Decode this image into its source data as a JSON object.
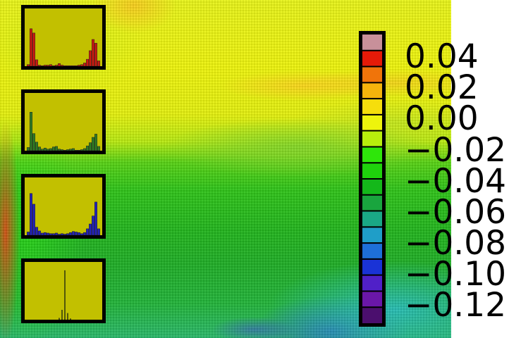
{
  "chart_data": {
    "type": "heatmap",
    "colorbar": {
      "ticks": [
        "0.04",
        "0.02",
        "0.00",
        "−0.02",
        "−0.04",
        "−0.06",
        "−0.08",
        "−0.10",
        "−0.12"
      ],
      "range": [
        -0.13,
        0.05
      ],
      "segments": [
        {
          "from": -0.13,
          "to": -0.12,
          "color": "#4b0f6e"
        },
        {
          "from": -0.12,
          "to": -0.11,
          "color": "#6a17a8"
        },
        {
          "from": -0.11,
          "to": -0.1,
          "color": "#5020c8"
        },
        {
          "from": -0.1,
          "to": -0.09,
          "color": "#1a33d6"
        },
        {
          "from": -0.09,
          "to": -0.08,
          "color": "#1e6fd8"
        },
        {
          "from": -0.08,
          "to": -0.07,
          "color": "#1f9ec8"
        },
        {
          "from": -0.07,
          "to": -0.06,
          "color": "#1aa886"
        },
        {
          "from": -0.06,
          "to": -0.05,
          "color": "#19a53e"
        },
        {
          "from": -0.05,
          "to": -0.04,
          "color": "#14b81a"
        },
        {
          "from": -0.04,
          "to": -0.03,
          "color": "#1fd20c"
        },
        {
          "from": -0.03,
          "to": -0.02,
          "color": "#2ee60a"
        },
        {
          "from": -0.02,
          "to": -0.01,
          "color": "#b8ef0c"
        },
        {
          "from": -0.01,
          "to": 0.0,
          "color": "#eef40c"
        },
        {
          "from": 0.0,
          "to": 0.01,
          "color": "#f6de0c"
        },
        {
          "from": 0.01,
          "to": 0.02,
          "color": "#f5b40c"
        },
        {
          "from": 0.02,
          "to": 0.03,
          "color": "#f0740a"
        },
        {
          "from": 0.03,
          "to": 0.04,
          "color": "#e61a08"
        },
        {
          "from": 0.04,
          "to": 0.05,
          "color": "#c8909a"
        }
      ]
    },
    "histograms": [
      {
        "name": "red",
        "color": "#cc1a10",
        "values": [
          3,
          70,
          62,
          12,
          2,
          1,
          2,
          2,
          3,
          1,
          2,
          5,
          2,
          1,
          1,
          1,
          1,
          1,
          2,
          3,
          6,
          13,
          29,
          50,
          43,
          10
        ]
      },
      {
        "name": "green",
        "color": "#2e7d22",
        "values": [
          6,
          72,
          32,
          16,
          7,
          3,
          5,
          3,
          4,
          7,
          8,
          3,
          2,
          1,
          2,
          3,
          4,
          1,
          1,
          2,
          4,
          9,
          15,
          25,
          31,
          8
        ]
      },
      {
        "name": "blue",
        "color": "#2222bb",
        "values": [
          6,
          78,
          58,
          15,
          8,
          4,
          5,
          4,
          3,
          3,
          4,
          2,
          3,
          2,
          3,
          5,
          7,
          6,
          5,
          3,
          5,
          12,
          21,
          36,
          62,
          12
        ]
      },
      {
        "name": "single",
        "color": "#556000",
        "values": [
          0,
          0,
          0,
          0,
          0,
          0,
          0,
          0,
          0,
          0,
          0,
          3,
          18,
          92,
          12,
          2,
          0,
          0,
          0,
          0,
          0,
          0,
          0,
          0,
          0,
          0
        ]
      }
    ],
    "histogram_max": 100
  }
}
